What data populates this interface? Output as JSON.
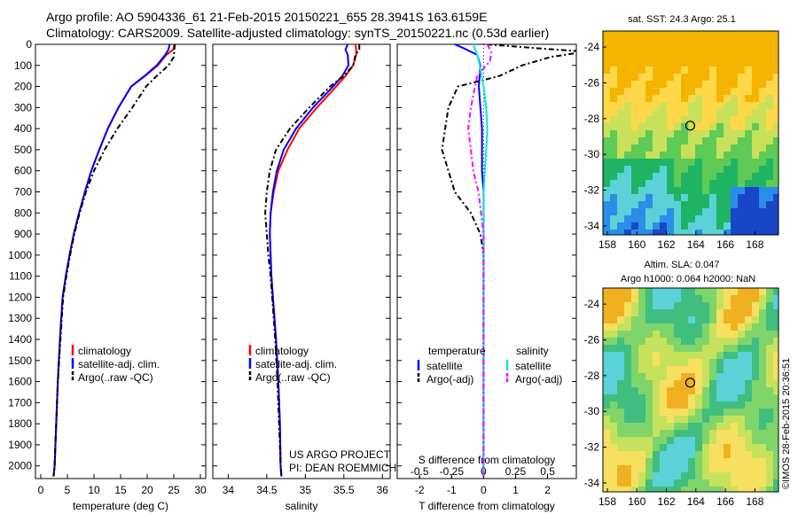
{
  "header": {
    "line1": "Argo profile: AO 5904336_61 21-Feb-2015 20150221_655 28.3941S 163.6159E",
    "line2": "Climatology: CARS2009. Satellite-adjusted climatology: synTS_20150221.nc (0.53d earlier)"
  },
  "credit": "©IMOS 28-Feb-2015 20:36:51",
  "colors": {
    "climatology": "#ff0000",
    "satellite": "#0000ff",
    "argo": "#000000",
    "sal_satellite": "#00e5ee",
    "sal_argo": "#ff00ff"
  },
  "depth_ticks": [
    "0",
    "100",
    "200",
    "300",
    "400",
    "500",
    "600",
    "700",
    "800",
    "900",
    "1000",
    "1100",
    "1200",
    "1300",
    "1400",
    "1500",
    "1600",
    "1700",
    "1800",
    "1900",
    "2000"
  ],
  "legends": {
    "climatology": "climatology",
    "satellite_adj": "satellite-adj. clim.",
    "argo_raw": "Argo(..raw -QC)",
    "temperature": "temperature",
    "salinity": "salinity",
    "satellite": "satellite",
    "argo_adj": "Argo(-adj)"
  },
  "project": {
    "line1": "US ARGO PROJECT",
    "line2": "PI: DEAN ROEMMICH"
  },
  "maps": {
    "sst_title": "sat. SST: 24.3 Argo: 25.1",
    "sla_title1": "Altim. SLA: 0.047",
    "sla_title2": "Argo h1000: 0.064 h2000: NaN",
    "lon_ticks": [
      "158",
      "160",
      "162",
      "164",
      "166",
      "168"
    ],
    "lat_ticks": [
      "-24",
      "-26",
      "-28",
      "-30",
      "-32",
      "-34"
    ],
    "argo_position": {
      "lon": 163.6159,
      "lat": -28.3941
    }
  },
  "chart_data": [
    {
      "type": "line",
      "xlabel": "temperature (deg C)",
      "ylabel": "",
      "xlim": [
        -1,
        31
      ],
      "ylim": [
        2060,
        0
      ],
      "xticks": [
        "0",
        "5",
        "10",
        "15",
        "20",
        "25",
        "30"
      ],
      "series": [
        {
          "name": "climatology",
          "x": [
            25.1,
            24.9,
            23.6,
            22.0,
            19.6,
            17.0,
            14.6,
            12.6,
            11.0,
            9.5,
            8.3,
            7.2,
            6.2,
            5.4,
            4.7,
            4.1,
            3.6,
            3.2,
            2.9,
            2.6,
            2.4
          ],
          "y": [
            0,
            25,
            50,
            100,
            150,
            200,
            300,
            400,
            500,
            600,
            700,
            800,
            900,
            1000,
            1100,
            1200,
            1400,
            1600,
            1800,
            2000,
            2050
          ]
        },
        {
          "name": "satellite-adj. clim.",
          "x": [
            24.2,
            24.0,
            23.4,
            21.8,
            19.5,
            17.0,
            14.6,
            12.6,
            11.0,
            9.5,
            8.3,
            7.2,
            6.2,
            5.4,
            4.7,
            4.1,
            3.6,
            3.2,
            2.9,
            2.6,
            2.4
          ],
          "y": [
            0,
            25,
            50,
            100,
            150,
            200,
            300,
            400,
            500,
            600,
            700,
            800,
            900,
            1000,
            1100,
            1200,
            1400,
            1600,
            1800,
            2000,
            2050
          ]
        },
        {
          "name": "Argo(..raw -QC)",
          "x": [
            25.2,
            25.1,
            25.0,
            24.0,
            21.8,
            19.8,
            17.2,
            14.4,
            12.0,
            10.0,
            8.5,
            7.3,
            6.3,
            5.5,
            4.8,
            4.2,
            3.7,
            3.2,
            2.9,
            2.6,
            2.4
          ],
          "y": [
            0,
            25,
            60,
            100,
            150,
            200,
            300,
            400,
            500,
            600,
            700,
            800,
            900,
            1000,
            1100,
            1200,
            1400,
            1600,
            1800,
            2000,
            2050
          ]
        }
      ]
    },
    {
      "type": "line",
      "xlabel": "salinity",
      "ylabel": "",
      "xlim": [
        33.8,
        36.1
      ],
      "ylim": [
        2060,
        0
      ],
      "xticks": [
        "34",
        "34.5",
        "35",
        "35.5",
        "36"
      ],
      "series": [
        {
          "name": "climatology",
          "x": [
            35.65,
            35.66,
            35.66,
            35.62,
            35.52,
            35.4,
            35.15,
            34.92,
            34.77,
            34.65,
            34.59,
            34.55,
            34.54,
            34.55,
            34.56,
            34.58,
            34.62,
            34.65,
            34.67,
            34.68,
            34.69
          ],
          "y": [
            0,
            25,
            50,
            100,
            150,
            200,
            300,
            400,
            500,
            600,
            700,
            800,
            900,
            1000,
            1100,
            1200,
            1400,
            1600,
            1800,
            2000,
            2050
          ]
        },
        {
          "name": "satellite-adj. clim.",
          "x": [
            35.55,
            35.52,
            35.55,
            35.56,
            35.48,
            35.36,
            35.1,
            34.88,
            34.72,
            34.63,
            34.58,
            34.55,
            34.54,
            34.55,
            34.56,
            34.58,
            34.62,
            34.65,
            34.67,
            34.68,
            34.69
          ],
          "y": [
            0,
            25,
            50,
            100,
            150,
            200,
            300,
            400,
            500,
            600,
            700,
            800,
            900,
            1000,
            1100,
            1200,
            1400,
            1600,
            1800,
            2000,
            2050
          ]
        },
        {
          "name": "Argo(..raw -QC)",
          "x": [
            35.7,
            35.7,
            35.65,
            35.62,
            35.5,
            35.32,
            35.05,
            34.8,
            34.62,
            34.54,
            34.5,
            34.48,
            34.5,
            34.52,
            34.55,
            34.57,
            34.61,
            34.64,
            34.66,
            34.68,
            34.69
          ],
          "y": [
            0,
            25,
            50,
            100,
            150,
            200,
            300,
            400,
            500,
            600,
            700,
            800,
            900,
            1000,
            1100,
            1200,
            1400,
            1600,
            1800,
            2000,
            2050
          ]
        }
      ]
    },
    {
      "type": "line",
      "xlabel": "T difference from climatology",
      "x2label": "S difference from climatology",
      "xlim": [
        -2.7,
        2.9
      ],
      "ylim": [
        2060,
        0
      ],
      "xticks": [
        "-2",
        "-1",
        "0",
        "1",
        "2"
      ],
      "x2ticks": [
        "-0.5",
        "-0.25",
        "0",
        "0.25",
        "0.5"
      ],
      "series": [
        {
          "name": "temperature satellite",
          "x": [
            -0.9,
            -0.6,
            -0.2,
            -0.1,
            -0.15,
            -0.1,
            -0.05,
            -0.05,
            -0.05,
            0.0,
            0.0,
            0.0,
            0.0,
            0.0,
            0.0
          ],
          "y": [
            0,
            20,
            50,
            100,
            200,
            300,
            400,
            500,
            600,
            700,
            800,
            1000,
            1200,
            1600,
            2050
          ]
        },
        {
          "name": "temperature Argo(-adj)",
          "x": [
            0.1,
            1.8,
            3.2,
            2.1,
            1.2,
            0.5,
            -0.8,
            -1.1,
            -1.2,
            -1.3,
            -1.1,
            -0.9,
            -0.4,
            -0.1,
            0.0,
            0.0,
            0.0,
            0.0
          ],
          "y": [
            0,
            20,
            35,
            60,
            100,
            150,
            200,
            300,
            400,
            500,
            600,
            700,
            800,
            900,
            1000,
            1200,
            1600,
            2050
          ]
        },
        {
          "name": "salinity satellite",
          "x": [
            -0.08,
            -0.05,
            -0.03,
            0.0,
            0.02,
            0.03,
            0.02,
            0.0,
            0.0,
            0.0,
            0.0
          ],
          "y": [
            0,
            50,
            100,
            200,
            300,
            400,
            500,
            700,
            1000,
            1500,
            2050
          ]
        },
        {
          "name": "salinity Argo(-adj)",
          "x": [
            0.03,
            0.06,
            0.05,
            -0.05,
            -0.1,
            -0.12,
            -0.1,
            -0.08,
            -0.04,
            0.0,
            0.0,
            0.0
          ],
          "y": [
            0,
            40,
            80,
            150,
            300,
            400,
            500,
            600,
            700,
            900,
            1200,
            2050
          ]
        }
      ]
    }
  ]
}
